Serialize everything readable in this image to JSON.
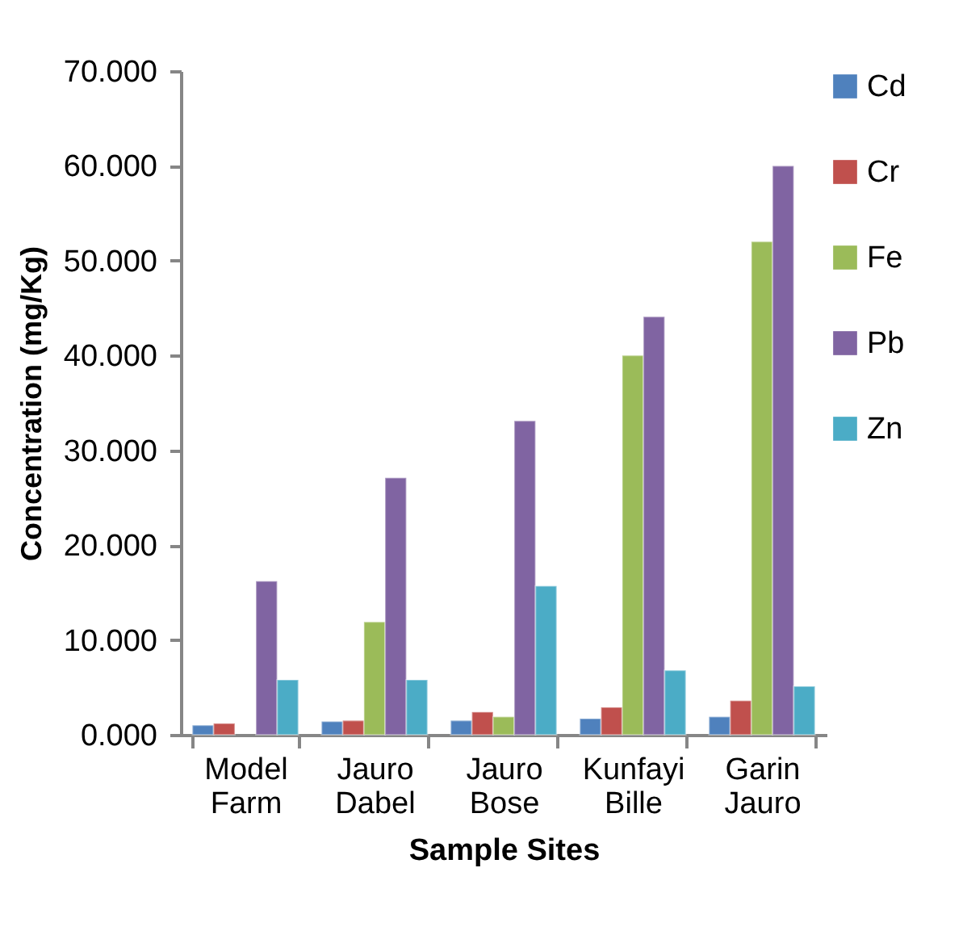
{
  "chart_data": {
    "type": "bar",
    "xlabel": "Sample Sites",
    "ylabel": "Concentration (mg/Kg)",
    "categories": [
      "Model Farm",
      "Jauro Dabel",
      "Jauro Bose",
      "Kunfayi Bille",
      "Garin Jauro"
    ],
    "series": [
      {
        "name": "Cd",
        "color": "#4f81bd",
        "values": [
          1.0,
          1.4,
          1.5,
          1.7,
          1.9
        ]
      },
      {
        "name": "Cr",
        "color": "#c0504d",
        "values": [
          1.2,
          1.5,
          2.4,
          2.9,
          3.6
        ]
      },
      {
        "name": "Fe",
        "color": "#9bbb59",
        "values": [
          null,
          11.9,
          1.9,
          40.0,
          52.0
        ]
      },
      {
        "name": "Pb",
        "color": "#8064a2",
        "values": [
          16.2,
          27.1,
          33.1,
          44.1,
          60.0
        ]
      },
      {
        "name": "Zn",
        "color": "#4bacc6",
        "values": [
          5.8,
          5.8,
          15.7,
          6.8,
          5.1
        ]
      }
    ],
    "ylim": [
      0,
      70
    ],
    "yticks": [
      {
        "value": 0,
        "label": "0.000"
      },
      {
        "value": 10,
        "label": "10.000"
      },
      {
        "value": 20,
        "label": "20.000"
      },
      {
        "value": 30,
        "label": "30.000"
      },
      {
        "value": 40,
        "label": "40.000"
      },
      {
        "value": 50,
        "label": "50.000"
      },
      {
        "value": 60,
        "label": "60.000"
      },
      {
        "value": 70,
        "label": "70.000"
      }
    ],
    "grid": false,
    "legend": "right"
  }
}
